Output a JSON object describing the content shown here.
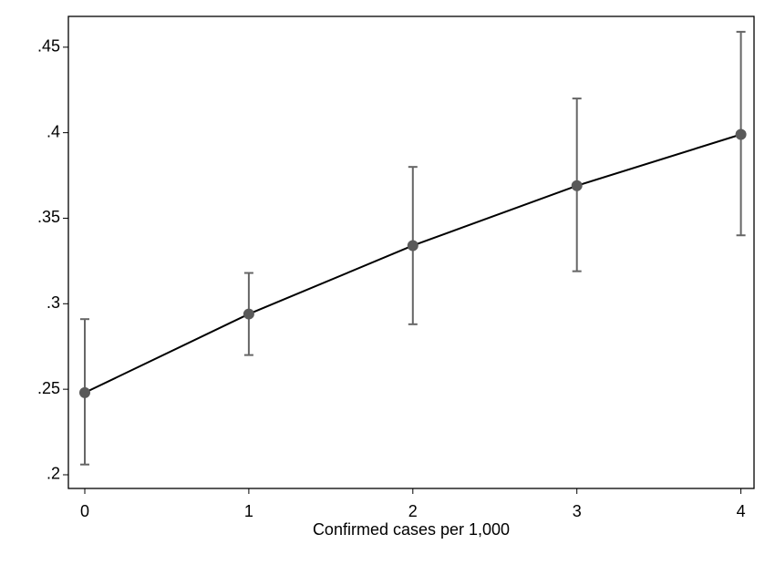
{
  "chart_data": {
    "type": "line",
    "x_label": "Confirmed cases per 1,000",
    "x": [
      0,
      1,
      2,
      3,
      4
    ],
    "series": [
      {
        "color": "#000000",
        "marker_color": "#5a5a5a",
        "error_color": "#666666",
        "values": [
          0.248,
          0.294,
          0.334,
          0.369,
          0.399
        ],
        "lower": [
          0.206,
          0.27,
          0.288,
          0.319,
          0.34
        ],
        "upper": [
          0.291,
          0.318,
          0.38,
          0.42,
          0.459
        ]
      }
    ],
    "xlim": [
      -0.1,
      4.08
    ],
    "ylim": [
      0.192,
      0.468
    ],
    "xticks": [
      0,
      1,
      2,
      3,
      4
    ],
    "yticks": [
      {
        "value": 0.2,
        "label": ".2"
      },
      {
        "value": 0.25,
        "label": ".25"
      },
      {
        "value": 0.3,
        "label": ".3"
      },
      {
        "value": 0.35,
        "label": ".35"
      },
      {
        "value": 0.4,
        "label": ".4"
      },
      {
        "value": 0.45,
        "label": ".45"
      }
    ],
    "grid": false
  }
}
